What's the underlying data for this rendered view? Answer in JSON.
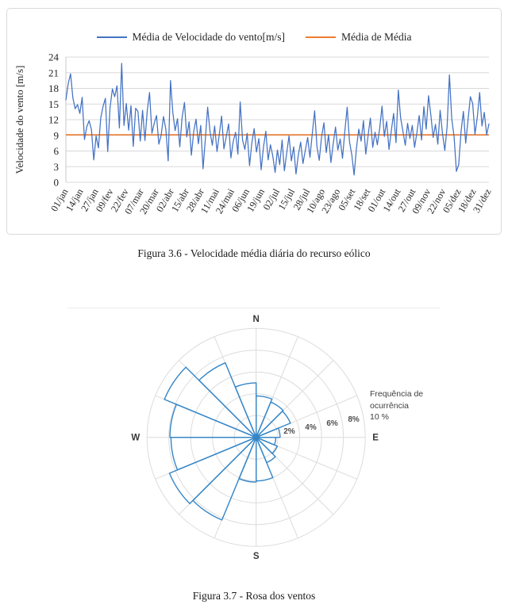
{
  "page": {
    "background": "#ffffff"
  },
  "figure1": {
    "border_color": "#d9d9d9",
    "legend": [
      {
        "label": "Média de Velocidade do vento[m/s]",
        "color": "#4472C4"
      },
      {
        "label": "Média de Média",
        "color": "#ED7D31"
      }
    ],
    "caption": "Figura 3.6 - Velocidade média diária do recurso eólico"
  },
  "figure2": {
    "caption": "Figura 3.7 - Rosa dos ventos"
  },
  "chart_data": [
    {
      "type": "line",
      "title": "",
      "xlabel": "",
      "ylabel": "Velocidade do vento [m/s]",
      "ylim": [
        0,
        24
      ],
      "yticks": [
        0,
        3,
        6,
        9,
        12,
        15,
        18,
        21,
        24
      ],
      "grid": "horizontal",
      "grid_color": "#d9d9d9",
      "axis_color": "#c9c9c9",
      "legend_position": "top",
      "days_total": 365,
      "xtick_interval_days": 13,
      "xticklabels": [
        "01/jan",
        "14/jan",
        "27/jan",
        "09/fev",
        "22/fev",
        "07/mar",
        "20/mar",
        "02/abr",
        "15/abr",
        "28/abr",
        "11/mai",
        "24/mai",
        "06/jun",
        "19/jun",
        "02/jul",
        "15/jul",
        "28/jul",
        "10/ago",
        "23/ago",
        "05/set",
        "18/set",
        "01/out",
        "14/out",
        "27/out",
        "09/nov",
        "22/nov",
        "05/dez",
        "18/dez",
        "31/dez"
      ],
      "series": [
        {
          "name": "Média de Velocidade do vento[m/s]",
          "color": "#4472C4",
          "sample_interval_days": 2,
          "values": [
            15.8,
            18.9,
            20.8,
            16.2,
            14.1,
            14.9,
            13.2,
            16.3,
            8.2,
            10.7,
            11.8,
            10.1,
            4.3,
            8.9,
            6.6,
            12.3,
            14.6,
            16.1,
            5.9,
            14.3,
            17.9,
            16.4,
            18.5,
            10.4,
            22.8,
            10.9,
            15.1,
            10.0,
            14.7,
            6.9,
            14.2,
            13.6,
            7.9,
            13.8,
            8.0,
            13.7,
            17.2,
            9.4,
            11.3,
            12.8,
            7.3,
            9.1,
            12.6,
            10.2,
            4.1,
            19.5,
            13.4,
            9.9,
            12.2,
            6.8,
            12.4,
            15.3,
            8.7,
            11.6,
            5.2,
            9.8,
            12.1,
            7.4,
            10.9,
            2.6,
            8.3,
            14.4,
            9.7,
            7.1,
            10.8,
            5.9,
            9.2,
            12.7,
            6.4,
            8.8,
            11.2,
            4.7,
            7.9,
            9.6,
            5.4,
            15.4,
            8.1,
            6.3,
            9.4,
            3.2,
            7.6,
            10.3,
            5.8,
            8.4,
            2.4,
            6.7,
            9.8,
            4.3,
            7.2,
            5.1,
            1.9,
            6.2,
            3.4,
            8.1,
            2.2,
            5.6,
            8.9,
            4.1,
            6.8,
            1.6,
            5.3,
            7.7,
            3.6,
            6.1,
            8.6,
            4.8,
            9.3,
            13.7,
            6.9,
            4.2,
            8.7,
            11.4,
            5.7,
            9.1,
            3.8,
            7.4,
            10.6,
            6.2,
            8.3,
            4.6,
            9.7,
            14.4,
            7.8,
            5.3,
            1.4,
            6.6,
            10.2,
            7.9,
            11.8,
            5.4,
            8.9,
            12.3,
            6.7,
            9.6,
            7.2,
            10.4,
            14.6,
            8.8,
            11.7,
            6.3,
            9.9,
            13.2,
            7.6,
            17.7,
            12.4,
            9.8,
            7.1,
            11.3,
            8.4,
            10.9,
            6.7,
            9.5,
            12.8,
            8.1,
            14.5,
            10.2,
            16.6,
            12.9,
            8.6,
            11.1,
            7.3,
            13.8,
            9.4,
            6.1,
            10.7,
            20.6,
            12.2,
            8.7,
            2.1,
            3.4,
            9.8,
            13.6,
            7.5,
            11.9,
            16.4,
            15.1,
            9.2,
            12.6,
            17.2,
            10.8,
            13.4,
            9.1,
            11.2
          ]
        },
        {
          "name": "Média de Média",
          "color": "#ED7D31",
          "constant_value": 9.1
        }
      ]
    },
    {
      "type": "windrose",
      "units": "%",
      "rlim": [
        0,
        10
      ],
      "rticks": [
        2,
        4,
        6,
        8
      ],
      "rtick_labels": [
        "2%",
        "4%",
        "6%",
        "8%"
      ],
      "outer_ring_pct": 10,
      "annotation": [
        "Frequência de",
        "ocurrência",
        "10 %"
      ],
      "compass": {
        "north": "N",
        "east": "E",
        "south": "S",
        "west": "W"
      },
      "grid_color": "#dcdcdc",
      "color": "#3586c7",
      "sector_width_deg": 22.5,
      "sectors": [
        {
          "from_deg": 0.0,
          "to_deg": 22.5,
          "value": 3.8
        },
        {
          "from_deg": 22.5,
          "to_deg": 45.0,
          "value": 3.5
        },
        {
          "from_deg": 45.0,
          "to_deg": 67.5,
          "value": 3.4
        },
        {
          "from_deg": 67.5,
          "to_deg": 90.0,
          "value": 2.2
        },
        {
          "from_deg": 90.0,
          "to_deg": 112.5,
          "value": 1.8
        },
        {
          "from_deg": 112.5,
          "to_deg": 135.0,
          "value": 2.1
        },
        {
          "from_deg": 135.0,
          "to_deg": 157.5,
          "value": 2.5
        },
        {
          "from_deg": 157.5,
          "to_deg": 180.0,
          "value": 4.0
        },
        {
          "from_deg": 180.0,
          "to_deg": 202.5,
          "value": 4.1
        },
        {
          "from_deg": 202.5,
          "to_deg": 225.0,
          "value": 8.2
        },
        {
          "from_deg": 225.0,
          "to_deg": 247.5,
          "value": 8.6
        },
        {
          "from_deg": 247.5,
          "to_deg": 270.0,
          "value": 7.8
        },
        {
          "from_deg": 270.0,
          "to_deg": 292.5,
          "value": 7.9
        },
        {
          "from_deg": 292.5,
          "to_deg": 315.0,
          "value": 9.1
        },
        {
          "from_deg": 315.0,
          "to_deg": 337.5,
          "value": 7.4
        },
        {
          "from_deg": 337.5,
          "to_deg": 360.0,
          "value": 5.0
        }
      ]
    }
  ]
}
